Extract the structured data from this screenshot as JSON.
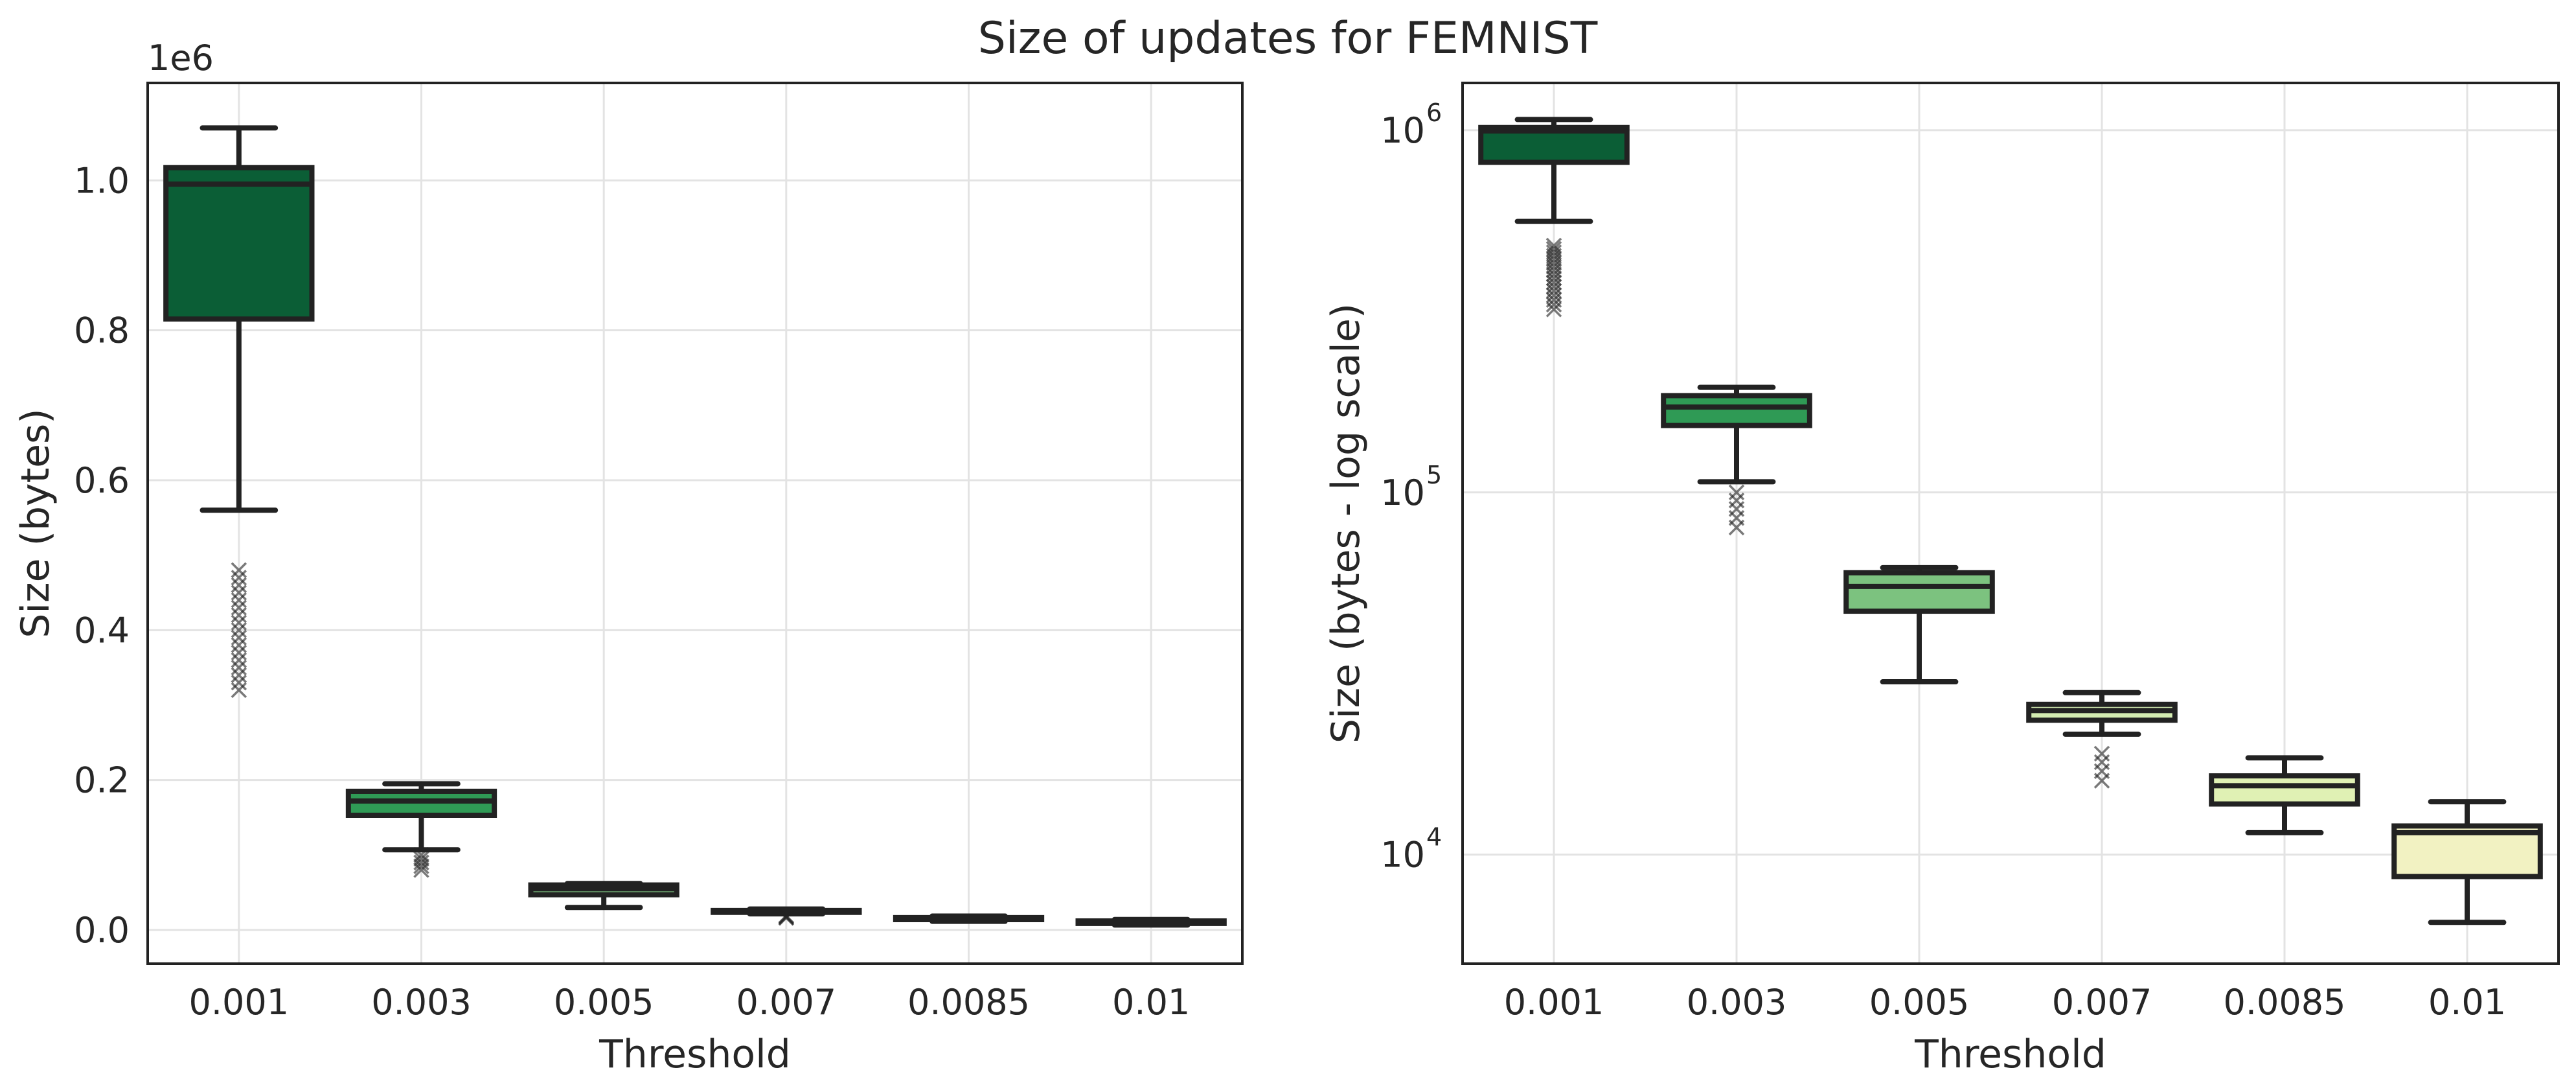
{
  "figure": {
    "title": "Size of updates for FEMNIST"
  },
  "chart_data": [
    {
      "type": "box",
      "xlabel": "Threshold",
      "ylabel": "Size (bytes)",
      "y_offset_label": "1e6",
      "yscale": "linear",
      "ylim": [
        -45000,
        1130000
      ],
      "yticks": [
        0,
        200000,
        400000,
        600000,
        800000,
        1000000
      ],
      "ytick_labels": [
        "0.0",
        "0.2",
        "0.4",
        "0.6",
        "0.8",
        "1.0"
      ],
      "grid": true,
      "categories": [
        "0.001",
        "0.003",
        "0.005",
        "0.007",
        "0.0085",
        "0.01"
      ],
      "colors": [
        "#0b5e36",
        "#2f9a55",
        "#7cc27f",
        "#d3ecb1",
        "#e0f1b4",
        "#f2f2c2"
      ],
      "boxes": [
        {
          "whislo": 560000,
          "q1": 815000,
          "med": 995000,
          "q3": 1017000,
          "whishi": 1070000,
          "fliers": [
            320000,
            330000,
            340000,
            350000,
            360000,
            370000,
            380000,
            390000,
            400000,
            410000,
            420000,
            430000,
            440000,
            450000,
            460000,
            470000,
            480000
          ]
        },
        {
          "whislo": 107000,
          "q1": 153000,
          "med": 172000,
          "q3": 185000,
          "whishi": 195000,
          "fliers": [
            80000,
            85000,
            90000,
            95000,
            100000
          ]
        },
        {
          "whislo": 30000,
          "q1": 47000,
          "med": 55000,
          "q3": 60000,
          "whishi": 62000,
          "fliers": []
        },
        {
          "whislo": 21500,
          "q1": 23500,
          "med": 25000,
          "q3": 26000,
          "whishi": 28000,
          "fliers": [
            16000,
            17000,
            18000,
            19000
          ]
        },
        {
          "whislo": 11500,
          "q1": 13800,
          "med": 15500,
          "q3": 16500,
          "whishi": 18500,
          "fliers": []
        },
        {
          "whislo": 6500,
          "q1": 8700,
          "med": 11500,
          "q3": 12000,
          "whishi": 14000,
          "fliers": []
        }
      ]
    },
    {
      "type": "box",
      "xlabel": "Threshold",
      "ylabel": "Size (bytes - log scale)",
      "yscale": "log",
      "ylim": [
        5000,
        1350000
      ],
      "yticks": [
        10000,
        100000,
        1000000
      ],
      "ytick_labels": [
        {
          "base": "10",
          "exp": "4"
        },
        {
          "base": "10",
          "exp": "5"
        },
        {
          "base": "10",
          "exp": "6"
        }
      ],
      "grid": true,
      "categories": [
        "0.001",
        "0.003",
        "0.005",
        "0.007",
        "0.0085",
        "0.01"
      ],
      "colors": [
        "#0b5e36",
        "#2f9a55",
        "#7cc27f",
        "#d3ecb1",
        "#e0f1b4",
        "#f2f2c2"
      ],
      "boxes": [
        {
          "whislo": 560000,
          "q1": 815000,
          "med": 995000,
          "q3": 1017000,
          "whishi": 1070000,
          "fliers": [
            320000,
            330000,
            340000,
            350000,
            360000,
            370000,
            380000,
            390000,
            400000,
            410000,
            420000,
            430000,
            440000,
            450000,
            460000,
            470000,
            480000
          ]
        },
        {
          "whislo": 107000,
          "q1": 153000,
          "med": 172000,
          "q3": 185000,
          "whishi": 195000,
          "fliers": [
            80000,
            85000,
            90000,
            95000,
            100000
          ]
        },
        {
          "whislo": 30000,
          "q1": 47000,
          "med": 55000,
          "q3": 60000,
          "whishi": 62000,
          "fliers": []
        },
        {
          "whislo": 21500,
          "q1": 23500,
          "med": 25000,
          "q3": 26000,
          "whishi": 28000,
          "fliers": [
            16000,
            17000,
            18000,
            19000
          ]
        },
        {
          "whislo": 11500,
          "q1": 13800,
          "med": 15500,
          "q3": 16500,
          "whishi": 18500,
          "fliers": []
        },
        {
          "whislo": 6500,
          "q1": 8700,
          "med": 11500,
          "q3": 12000,
          "whishi": 14000,
          "fliers": []
        }
      ]
    }
  ]
}
